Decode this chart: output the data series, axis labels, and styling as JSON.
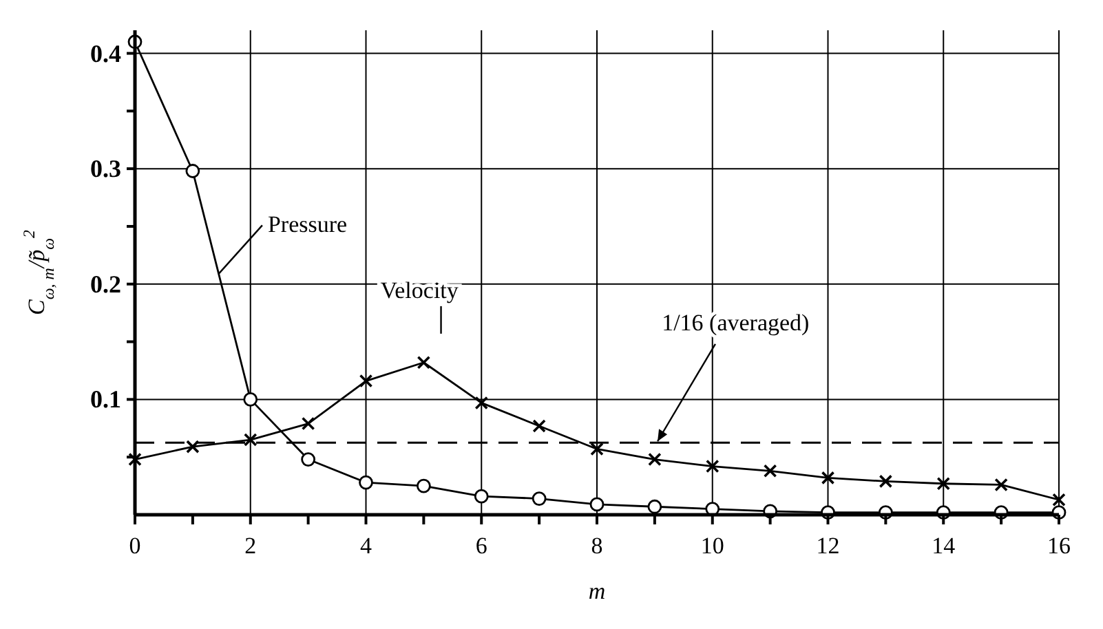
{
  "chart_data": {
    "type": "line",
    "xlabel": "m",
    "ylabel": "C$_{ω, m}$/p̃$_{ω}$$^{2}$",
    "x": [
      0,
      1,
      2,
      3,
      4,
      5,
      6,
      7,
      8,
      9,
      10,
      11,
      12,
      13,
      14,
      15,
      16
    ],
    "series": [
      {
        "name": "Pressure",
        "color": "#000000",
        "marker": "circle",
        "values": [
          0.41,
          0.298,
          0.1,
          0.048,
          0.028,
          0.025,
          0.016,
          0.014,
          0.009,
          0.007,
          0.005,
          0.003,
          0.002,
          0.002,
          0.002,
          0.002,
          0.002
        ]
      },
      {
        "name": "Velocity",
        "color": "#000000",
        "marker": "cross",
        "values": [
          0.048,
          0.059,
          0.065,
          0.079,
          0.116,
          0.132,
          0.097,
          0.077,
          0.057,
          0.048,
          0.042,
          0.038,
          0.032,
          0.029,
          0.027,
          0.026,
          0.013
        ]
      }
    ],
    "xlim": [
      0,
      16
    ],
    "xticks": [
      0,
      {
        "value": 1,
        "label": null
      },
      2,
      {
        "value": 3,
        "label": null
      },
      4,
      {
        "value": 5,
        "label": null
      },
      6,
      {
        "value": 7,
        "label": null
      },
      8,
      {
        "value": 9,
        "label": null
      },
      10,
      {
        "value": 11,
        "label": null
      },
      12,
      {
        "value": 13,
        "label": null
      },
      14,
      {
        "value": 15,
        "label": null
      },
      16
    ],
    "ylim": [
      0,
      0.42
    ],
    "yticks": [
      {
        "value": 0.05,
        "label": null
      },
      0.1,
      {
        "value": 0.15,
        "label": null
      },
      0.2,
      {
        "value": 0.25,
        "label": null
      },
      0.3,
      {
        "value": 0.35,
        "label": null
      },
      0.4
    ],
    "ref_lines": [
      {
        "axis": "y",
        "value": 0.0625,
        "label": "1/16 (averaged)",
        "line_style": "dashed",
        "color": "#000000"
      }
    ],
    "grid": true,
    "line_style": "solid"
  }
}
